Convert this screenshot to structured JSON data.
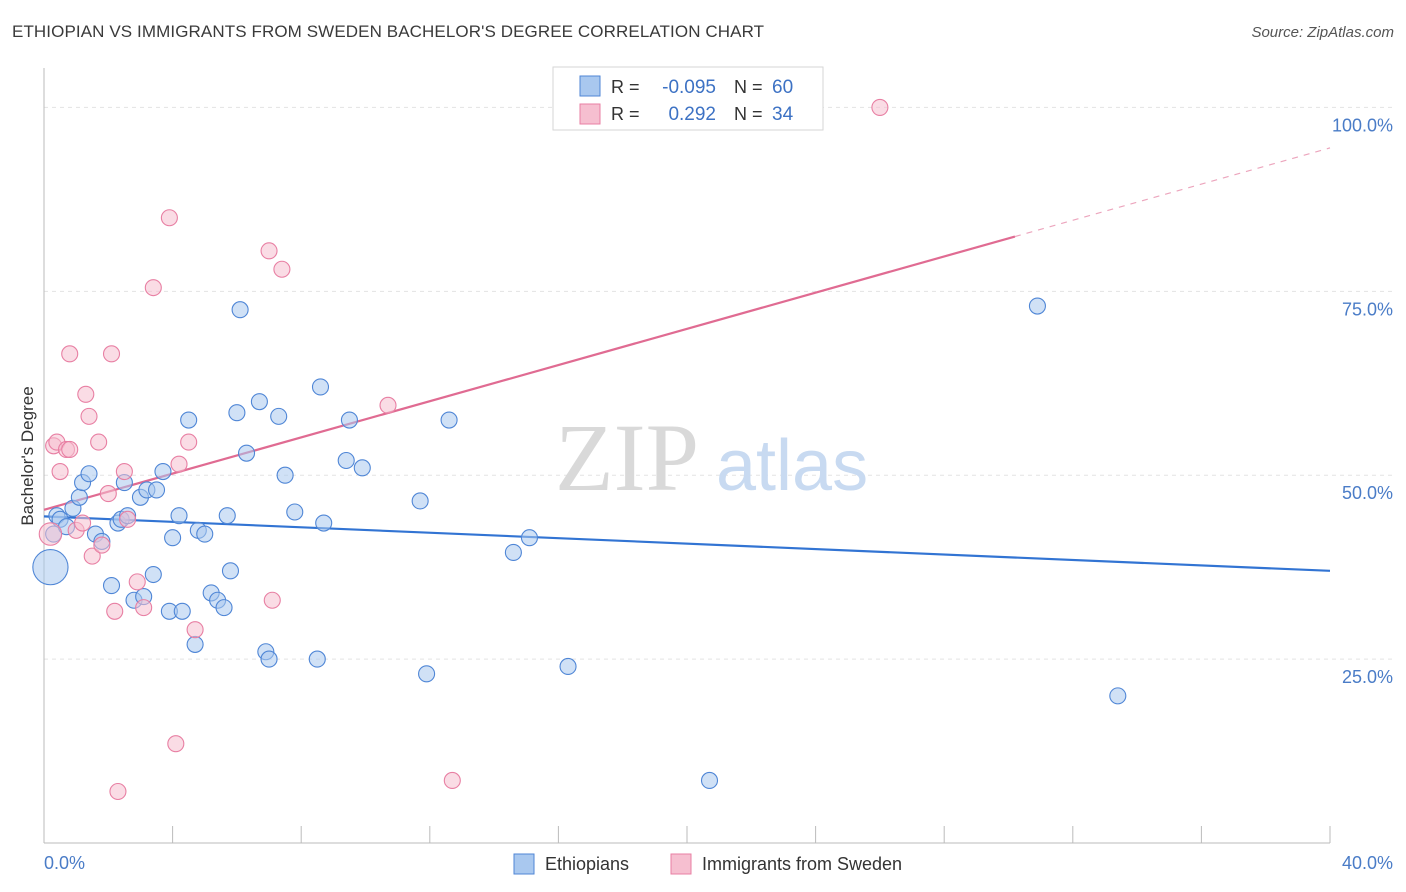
{
  "title": "ETHIOPIAN VS IMMIGRANTS FROM SWEDEN BACHELOR'S DEGREE CORRELATION CHART",
  "source": "Source: ZipAtlas.com",
  "watermark": {
    "zip": "ZIP",
    "atlas": "atlas"
  },
  "colors": {
    "blue_fill": "#a9c8ef",
    "blue_stroke": "#4f86d6",
    "blue_line": "#3274d3",
    "pink_fill": "#f6bfd0",
    "pink_stroke": "#e87fa3",
    "pink_line": "#e06b92",
    "axis_text": "#4a7cc7"
  },
  "legend": {
    "r_label": "R =",
    "n_label": "N =",
    "series": [
      {
        "r": "-0.095",
        "n": "60"
      },
      {
        "r": "0.292",
        "n": "34"
      }
    ]
  },
  "chart_data": {
    "type": "scatter",
    "title": "ETHIOPIAN VS IMMIGRANTS FROM SWEDEN BACHELOR'S DEGREE CORRELATION CHART",
    "ylabel": "Bachelor's Degree",
    "xlabel": "",
    "xlim": [
      0,
      40
    ],
    "ylim": [
      0,
      104
    ],
    "x_tick_labels": [
      {
        "value": 0,
        "label": "0.0%"
      },
      {
        "value": 40,
        "label": "40.0%"
      }
    ],
    "y_tick_labels": [
      {
        "value": 25,
        "label": "25.0%"
      },
      {
        "value": 50,
        "label": "50.0%"
      },
      {
        "value": 75,
        "label": "75.0%"
      },
      {
        "value": 100,
        "label": "100.0%"
      }
    ],
    "series": [
      {
        "name": "Ethiopians",
        "color": "#4f86d6",
        "trend": {
          "x": [
            0,
            40
          ],
          "y": [
            44.4,
            37.0
          ],
          "dashed_from": null
        },
        "points": [
          [
            0.2,
            37.5,
            2.2
          ],
          [
            0.3,
            42.0,
            1
          ],
          [
            0.4,
            44.5,
            1
          ],
          [
            0.5,
            44.0,
            1
          ],
          [
            0.7,
            43.0,
            1
          ],
          [
            0.9,
            45.5,
            1
          ],
          [
            1.1,
            47.0,
            1
          ],
          [
            1.2,
            49.0,
            1
          ],
          [
            1.4,
            50.2,
            1
          ],
          [
            1.6,
            42.0,
            1
          ],
          [
            1.8,
            41.0,
            1
          ],
          [
            2.1,
            35.0,
            1
          ],
          [
            2.3,
            43.5,
            1
          ],
          [
            2.4,
            44.0,
            1
          ],
          [
            2.5,
            49.0,
            1
          ],
          [
            2.6,
            44.5,
            1
          ],
          [
            2.8,
            33.0,
            1
          ],
          [
            3.0,
            47.0,
            1
          ],
          [
            3.1,
            33.5,
            1
          ],
          [
            3.2,
            48.0,
            1
          ],
          [
            3.4,
            36.5,
            1
          ],
          [
            3.5,
            48.0,
            1
          ],
          [
            3.7,
            50.5,
            1
          ],
          [
            3.9,
            31.5,
            1
          ],
          [
            4.0,
            41.5,
            1
          ],
          [
            4.2,
            44.5,
            1
          ],
          [
            4.3,
            31.5,
            1
          ],
          [
            4.5,
            57.5,
            1
          ],
          [
            4.7,
            27.0,
            1
          ],
          [
            4.8,
            42.5,
            1
          ],
          [
            5.0,
            42.0,
            1
          ],
          [
            5.2,
            34.0,
            1
          ],
          [
            5.4,
            33.0,
            1
          ],
          [
            5.6,
            32.0,
            1
          ],
          [
            5.7,
            44.5,
            1
          ],
          [
            5.8,
            37.0,
            1
          ],
          [
            6.0,
            58.5,
            1
          ],
          [
            6.1,
            72.5,
            1
          ],
          [
            6.3,
            53.0,
            1
          ],
          [
            6.7,
            60.0,
            1
          ],
          [
            6.9,
            26.0,
            1
          ],
          [
            7.0,
            25.0,
            1
          ],
          [
            7.3,
            58.0,
            1
          ],
          [
            7.5,
            50.0,
            1
          ],
          [
            7.8,
            45.0,
            1
          ],
          [
            8.5,
            25.0,
            1
          ],
          [
            8.6,
            62.0,
            1
          ],
          [
            8.7,
            43.5,
            1
          ],
          [
            9.5,
            57.5,
            1
          ],
          [
            9.4,
            52.0,
            1
          ],
          [
            9.9,
            51.0,
            1
          ],
          [
            11.7,
            46.5,
            1
          ],
          [
            11.9,
            23.0,
            1
          ],
          [
            12.6,
            57.5,
            1
          ],
          [
            14.6,
            39.5,
            1
          ],
          [
            15.1,
            41.5,
            1
          ],
          [
            16.3,
            24.0,
            1
          ],
          [
            20.7,
            8.5,
            1
          ],
          [
            30.9,
            73.0,
            1
          ],
          [
            33.4,
            20.0,
            1
          ]
        ]
      },
      {
        "name": "Immigrants from Sweden",
        "color": "#e87fa3",
        "trend": {
          "x": [
            0,
            40
          ],
          "y": [
            45.3,
            94.5
          ],
          "dashed_from": 30.2
        },
        "points": [
          [
            0.2,
            42.0,
            1.4
          ],
          [
            0.3,
            54.0,
            1
          ],
          [
            0.4,
            54.5,
            1
          ],
          [
            0.5,
            50.5,
            1
          ],
          [
            0.7,
            53.5,
            1
          ],
          [
            0.8,
            53.5,
            1
          ],
          [
            0.8,
            66.5,
            1
          ],
          [
            1.0,
            42.5,
            1
          ],
          [
            1.2,
            43.5,
            1
          ],
          [
            1.3,
            61.0,
            1
          ],
          [
            1.4,
            58.0,
            1
          ],
          [
            1.5,
            39.0,
            1
          ],
          [
            1.7,
            54.5,
            1
          ],
          [
            1.8,
            40.5,
            1
          ],
          [
            2.0,
            47.5,
            1
          ],
          [
            2.1,
            66.5,
            1
          ],
          [
            2.2,
            31.5,
            1
          ],
          [
            2.3,
            7.0,
            1
          ],
          [
            2.5,
            50.5,
            1
          ],
          [
            2.6,
            44.0,
            1
          ],
          [
            2.9,
            35.5,
            1
          ],
          [
            3.1,
            32.0,
            1
          ],
          [
            3.4,
            75.5,
            1
          ],
          [
            3.9,
            85.0,
            1
          ],
          [
            4.1,
            13.5,
            1
          ],
          [
            4.2,
            51.5,
            1
          ],
          [
            4.5,
            54.5,
            1
          ],
          [
            4.7,
            29.0,
            1
          ],
          [
            7.0,
            80.5,
            1
          ],
          [
            7.1,
            33.0,
            1
          ],
          [
            7.4,
            78.0,
            1
          ],
          [
            10.7,
            59.5,
            1
          ],
          [
            12.7,
            8.5,
            1
          ],
          [
            26.0,
            100.0,
            1
          ]
        ]
      }
    ]
  }
}
